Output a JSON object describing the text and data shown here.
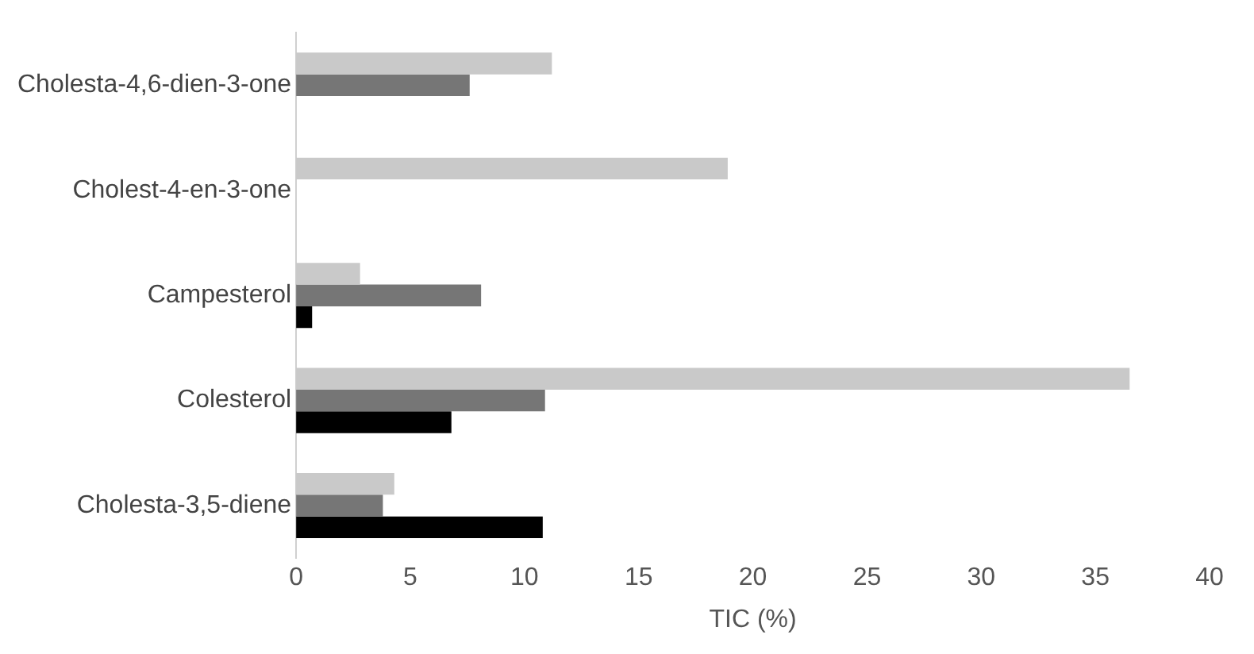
{
  "chart_data": {
    "type": "bar",
    "orientation": "horizontal",
    "xlabel": "TIC (%)",
    "categories": [
      "Cholesta-4,6-dien-3-one",
      "Cholest-4-en-3-one",
      "Campesterol",
      "Colesterol",
      "Cholesta-3,5-diene"
    ],
    "series": [
      {
        "color": "#c9c9c9",
        "values": [
          11.2,
          18.9,
          2.8,
          36.5,
          4.3
        ]
      },
      {
        "color": "#767676",
        "values": [
          7.6,
          null,
          8.1,
          10.9,
          3.8
        ]
      },
      {
        "color": "#000000",
        "values": [
          null,
          null,
          0.7,
          6.8,
          10.8
        ]
      }
    ],
    "xlim": [
      0,
      40
    ],
    "xticks": [
      0,
      5,
      10,
      15,
      20,
      25,
      30,
      35,
      40
    ],
    "grid": false,
    "legend": false
  }
}
